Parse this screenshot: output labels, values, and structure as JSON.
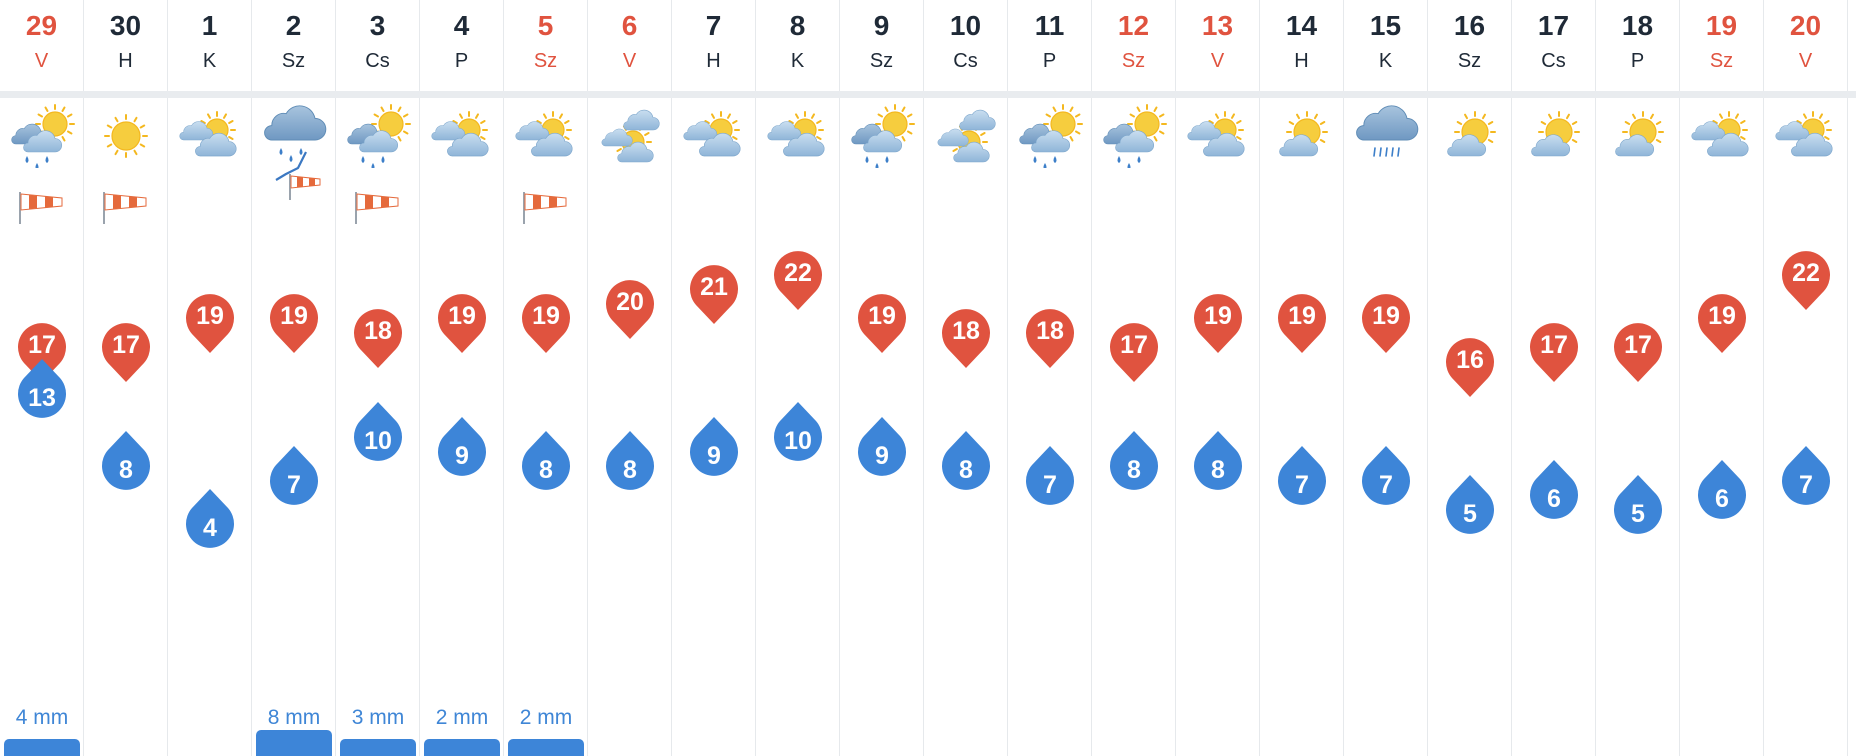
{
  "colors": {
    "weekend": "#e0533f",
    "weekday": "#1f2a37",
    "max_temp": "#e0533f",
    "min_temp": "#3d85d8",
    "precip": "#3f86d6"
  },
  "days": [
    {
      "day": "29",
      "weekday": "V",
      "weekend": true,
      "icon": "partly-cloudy-rain",
      "wind": "windsock",
      "max": "17",
      "min": "13",
      "precip": "4 mm",
      "precip_bar": 1
    },
    {
      "day": "30",
      "weekday": "H",
      "weekend": false,
      "icon": "sunny",
      "wind": "windsock",
      "max": "17",
      "min": "8",
      "precip": "",
      "precip_bar": 0
    },
    {
      "day": "1",
      "weekday": "K",
      "weekend": false,
      "icon": "partly-cloudy",
      "wind": "",
      "max": "19",
      "min": "4",
      "precip": "",
      "precip_bar": 0
    },
    {
      "day": "2",
      "weekday": "Sz",
      "weekend": false,
      "icon": "cloudy-rain",
      "wind": "windsock-storm",
      "max": "19",
      "min": "7",
      "precip": "8 mm",
      "precip_bar": 2
    },
    {
      "day": "3",
      "weekday": "Cs",
      "weekend": false,
      "icon": "partly-cloudy-rain",
      "wind": "windsock",
      "max": "18",
      "min": "10",
      "precip": "3 mm",
      "precip_bar": 1
    },
    {
      "day": "4",
      "weekday": "P",
      "weekend": false,
      "icon": "partly-cloudy",
      "wind": "",
      "max": "19",
      "min": "9",
      "precip": "2 mm",
      "precip_bar": 1
    },
    {
      "day": "5",
      "weekday": "Sz",
      "weekend": true,
      "icon": "partly-cloudy",
      "wind": "windsock",
      "max": "19",
      "min": "8",
      "precip": "2 mm",
      "precip_bar": 1
    },
    {
      "day": "6",
      "weekday": "V",
      "weekend": true,
      "icon": "mostly-cloudy",
      "wind": "",
      "max": "20",
      "min": "8",
      "precip": "",
      "precip_bar": 0
    },
    {
      "day": "7",
      "weekday": "H",
      "weekend": false,
      "icon": "partly-cloudy",
      "wind": "",
      "max": "21",
      "min": "9",
      "precip": "",
      "precip_bar": 0
    },
    {
      "day": "8",
      "weekday": "K",
      "weekend": false,
      "icon": "partly-cloudy",
      "wind": "",
      "max": "22",
      "min": "10",
      "precip": "",
      "precip_bar": 0
    },
    {
      "day": "9",
      "weekday": "Sz",
      "weekend": false,
      "icon": "partly-cloudy-rain",
      "wind": "",
      "max": "19",
      "min": "9",
      "precip": "",
      "precip_bar": 0
    },
    {
      "day": "10",
      "weekday": "Cs",
      "weekend": false,
      "icon": "mostly-cloudy",
      "wind": "",
      "max": "18",
      "min": "8",
      "precip": "",
      "precip_bar": 0
    },
    {
      "day": "11",
      "weekday": "P",
      "weekend": false,
      "icon": "partly-cloudy-rain",
      "wind": "",
      "max": "18",
      "min": "7",
      "precip": "",
      "precip_bar": 0
    },
    {
      "day": "12",
      "weekday": "Sz",
      "weekend": true,
      "icon": "partly-cloudy-rain",
      "wind": "",
      "max": "17",
      "min": "8",
      "precip": "",
      "precip_bar": 0
    },
    {
      "day": "13",
      "weekday": "V",
      "weekend": true,
      "icon": "partly-cloudy",
      "wind": "",
      "max": "19",
      "min": "8",
      "precip": "",
      "precip_bar": 0
    },
    {
      "day": "14",
      "weekday": "H",
      "weekend": false,
      "icon": "mostly-sunny",
      "wind": "",
      "max": "19",
      "min": "7",
      "precip": "",
      "precip_bar": 0
    },
    {
      "day": "15",
      "weekday": "K",
      "weekend": false,
      "icon": "cloudy-drizzle",
      "wind": "",
      "max": "19",
      "min": "7",
      "precip": "",
      "precip_bar": 0
    },
    {
      "day": "16",
      "weekday": "Sz",
      "weekend": false,
      "icon": "mostly-sunny",
      "wind": "",
      "max": "16",
      "min": "5",
      "precip": "",
      "precip_bar": 0
    },
    {
      "day": "17",
      "weekday": "Cs",
      "weekend": false,
      "icon": "mostly-sunny",
      "wind": "",
      "max": "17",
      "min": "6",
      "precip": "",
      "precip_bar": 0
    },
    {
      "day": "18",
      "weekday": "P",
      "weekend": false,
      "icon": "mostly-sunny",
      "wind": "",
      "max": "17",
      "min": "5",
      "precip": "",
      "precip_bar": 0
    },
    {
      "day": "19",
      "weekday": "Sz",
      "weekend": true,
      "icon": "partly-cloudy",
      "wind": "",
      "max": "19",
      "min": "6",
      "precip": "",
      "precip_bar": 0
    },
    {
      "day": "20",
      "weekday": "V",
      "weekend": true,
      "icon": "partly-cloudy",
      "wind": "",
      "max": "22",
      "min": "7",
      "precip": "",
      "precip_bar": 0
    }
  ]
}
